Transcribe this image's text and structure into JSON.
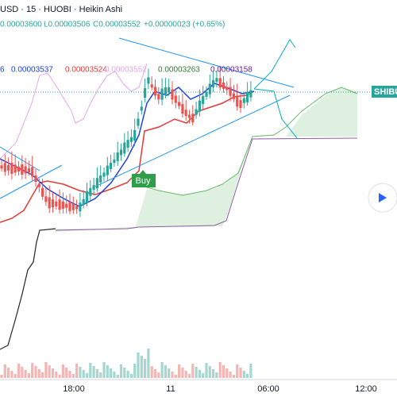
{
  "header": {
    "symbol": "USD · 15 · HUOBI · Heikin Ashi",
    "high": "0.00003600",
    "low": "L0.00003506",
    "close": "C0.00003552",
    "change": "+0.00000023 (+0.65%)"
  },
  "indicators": [
    "6",
    "0.00003537",
    "0.00003524",
    "0.00003552",
    "0.00003263",
    "0.00003158"
  ],
  "buy_label": "Buy",
  "price_tag": "SHIBUS",
  "time_axis": [
    "18:00",
    "11",
    "06:00",
    "12:00"
  ]
}
